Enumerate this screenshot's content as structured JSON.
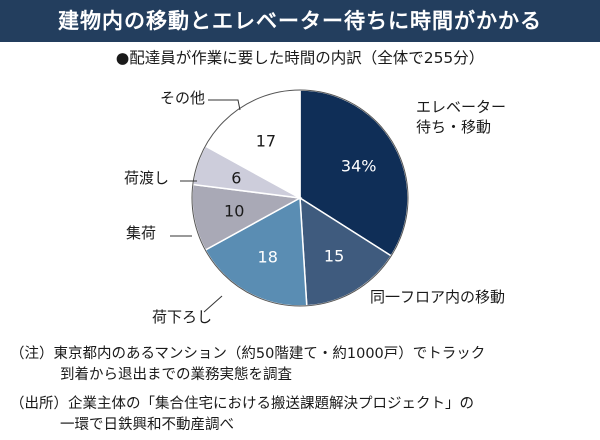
{
  "title": "建物内の移動とエレベーター待ちに時間がかかる",
  "subtitle": "●配達員が作業に要した時間の内訳（全体で255分）",
  "colors": {
    "title_bg": "#233e5e",
    "title_text": "#ffffff"
  },
  "chart_data": {
    "type": "pie",
    "title": "●配達員が作業に要した時間の内訳（全体で255分）",
    "total": 255,
    "unit": "分",
    "slices": [
      {
        "label": "エレベーター\n待ち・移動",
        "value": 34,
        "display": "34%",
        "color": "#0f2e57",
        "text_color": "#ffffff"
      },
      {
        "label": "同一フロア内の移動",
        "value": 15,
        "display": "15",
        "color": "#3f5b7e",
        "text_color": "#ffffff"
      },
      {
        "label": "荷下ろし",
        "value": 18,
        "display": "18",
        "color": "#5a8db3",
        "text_color": "#ffffff"
      },
      {
        "label": "集荷",
        "value": 10,
        "display": "10",
        "color": "#a9a9b6",
        "text_color": "#1a1a1a"
      },
      {
        "label": "荷渡し",
        "value": 6,
        "display": "6",
        "color": "#cdcddb",
        "text_color": "#1a1a1a"
      },
      {
        "label": "その他",
        "value": 17,
        "display": "17",
        "color": "#ffffff",
        "text_color": "#1a1a1a"
      }
    ]
  },
  "notes": {
    "note1_line1": "（注）東京都内のあるマンション（約50階建て・約1000戸）でトラック",
    "note1_line2": "到着から退出までの業務実態を調査",
    "note2_line1": "（出所）企業主体の「集合住宅における搬送課題解決プロジェクト」の",
    "note2_line2": "一環で日鉄興和不動産調べ"
  }
}
